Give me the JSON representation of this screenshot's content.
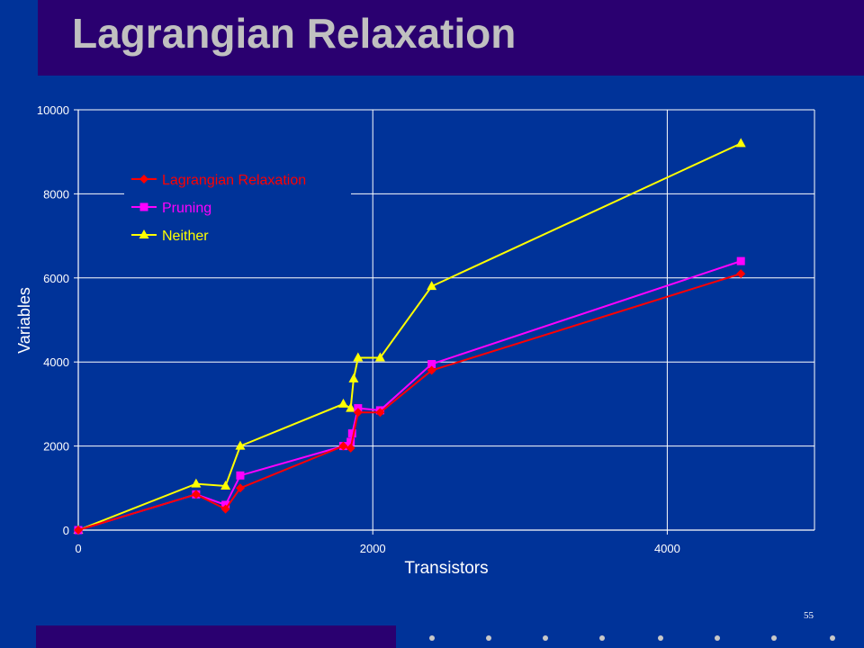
{
  "slide": {
    "title": "Lagrangian Relaxation",
    "page_number": "55"
  },
  "colors": {
    "background": "#003399",
    "title_bar": "#2a0070",
    "title_text": "#c0c0c0",
    "grid": "#ffffff",
    "footer_dots": "#c8c8c8"
  },
  "chart_data": {
    "type": "line",
    "xlabel": "Transistors",
    "ylabel": "Variables",
    "xlim": [
      0,
      5000
    ],
    "ylim": [
      0,
      10000
    ],
    "x_ticks": [
      0,
      2000,
      4000
    ],
    "y_ticks": [
      0,
      2000,
      4000,
      6000,
      8000,
      10000
    ],
    "grid": true,
    "legend_position": "top-left",
    "series": [
      {
        "name": "Lagrangian Relaxation",
        "color": "#ff0000",
        "marker": "diamond",
        "points": [
          [
            0,
            0
          ],
          [
            800,
            850
          ],
          [
            1000,
            500
          ],
          [
            1100,
            1000
          ],
          [
            1800,
            2000
          ],
          [
            1850,
            1950
          ],
          [
            1900,
            2800
          ],
          [
            2050,
            2800
          ],
          [
            2400,
            3800
          ],
          [
            4500,
            6100
          ]
        ]
      },
      {
        "name": "Pruning",
        "color": "#ff00ff",
        "marker": "square",
        "points": [
          [
            0,
            0
          ],
          [
            800,
            850
          ],
          [
            1000,
            600
          ],
          [
            1100,
            1300
          ],
          [
            1800,
            2000
          ],
          [
            1850,
            2100
          ],
          [
            1860,
            2300
          ],
          [
            1900,
            2900
          ],
          [
            2050,
            2850
          ],
          [
            2400,
            3950
          ],
          [
            4500,
            6400
          ]
        ]
      },
      {
        "name": "Neither",
        "color": "#ffff00",
        "marker": "triangle",
        "points": [
          [
            0,
            0
          ],
          [
            800,
            1100
          ],
          [
            1000,
            1050
          ],
          [
            1100,
            2000
          ],
          [
            1800,
            3000
          ],
          [
            1850,
            2900
          ],
          [
            1870,
            3600
          ],
          [
            1900,
            4100
          ],
          [
            2050,
            4100
          ],
          [
            2400,
            5800
          ],
          [
            4500,
            9200
          ]
        ]
      }
    ]
  }
}
